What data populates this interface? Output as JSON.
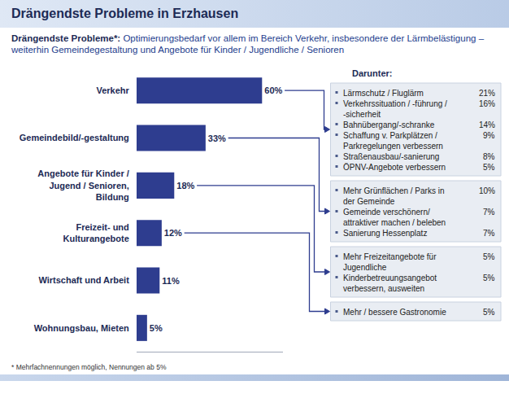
{
  "chart_data": {
    "type": "bar",
    "orientation": "horizontal",
    "title": "Drängendste Probleme in Erzhausen",
    "subtitle_lead": "Drängendste Probleme*:",
    "subtitle": "Optimierungsbedarf vor allem im Bereich Verkehr, insbesondere der Lärmbelästigung – weiterhin Gemeindegestaltung und Angebote für Kinder / Jugendliche / Senioren",
    "categories": [
      "Verkehr",
      "Gemeindebild/-gestaltung",
      "Angebote für Kinder / Jugend / Senioren, Bildung",
      "Freizeit- und Kulturangebote",
      "Wirtschaft und Arbeit",
      "Wohnungsbau, Mieten"
    ],
    "values": [
      60,
      33,
      18,
      12,
      11,
      5
    ],
    "value_labels": [
      "60%",
      "33%",
      "18%",
      "12%",
      "11%",
      "5%"
    ],
    "color": "#2e3d8f",
    "xlim": [
      0,
      70
    ],
    "grid": false,
    "data_labels": true,
    "tick_labels": "y",
    "list_title": "Darunter:",
    "breakdown": [
      {
        "parent": "Verkehr",
        "items": [
          {
            "label": "Lärmschutz / Fluglärm",
            "value": 21,
            "value_label": "21%"
          },
          {
            "label": "Verkehrssituation / -führung / -sicherheit",
            "value": 16,
            "value_label": "16%"
          },
          {
            "label": "Bahnübergang/-schranke",
            "value": 14,
            "value_label": "14%"
          },
          {
            "label": "Schaffung v. Parkplätzen / Parkregelungen verbessern",
            "value": 9,
            "value_label": "9%"
          },
          {
            "label": "Straßenausbau/-sanierung",
            "value": 8,
            "value_label": "8%"
          },
          {
            "label": "ÖPNV-Angebote verbessern",
            "value": 5,
            "value_label": "5%"
          }
        ]
      },
      {
        "parent": "Gemeindebild/-gestaltung",
        "items": [
          {
            "label": "Mehr Grünflächen / Parks in der Gemeinde",
            "value": 10,
            "value_label": "10%"
          },
          {
            "label": "Gemeinde verschönern/ attraktiver machen / beleben",
            "value": 7,
            "value_label": "7%"
          },
          {
            "label": "Sanierung Hessenplatz",
            "value": 7,
            "value_label": "7%"
          }
        ]
      },
      {
        "parent": "Angebote für Kinder / Jugend / Senioren, Bildung",
        "items": [
          {
            "label": "Mehr Freizeitangebote für Jugendliche",
            "value": 5,
            "value_label": "5%"
          },
          {
            "label": "Kinderbetreuungsangebot verbessern, ausweiten",
            "value": 5,
            "value_label": "5%"
          }
        ]
      },
      {
        "parent": "Freizeit- und Kulturangebote",
        "items": [
          {
            "label": "Mehr / bessere Gastronomie",
            "value": 5,
            "value_label": "5%"
          }
        ]
      }
    ],
    "footnote": "* Mehrfachnennungen möglich, Nennungen ab 5%"
  }
}
